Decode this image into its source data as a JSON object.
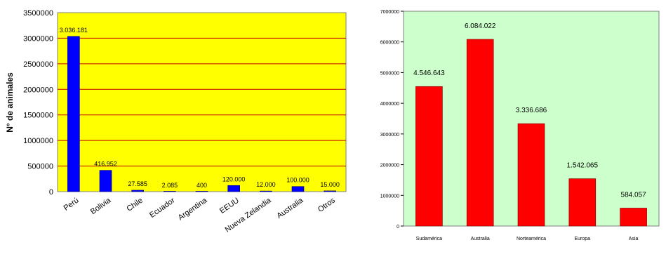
{
  "chart_data": [
    {
      "type": "bar",
      "title": "",
      "xlabel": "",
      "ylabel": "N° de animales",
      "ylim": [
        0,
        3500000
      ],
      "yticks": [
        "0",
        "500000",
        "1000000",
        "1500000",
        "2000000",
        "2500000",
        "3000000",
        "3500000"
      ],
      "categories": [
        "Perú",
        "Bolivia",
        "Chile",
        "Ecuador",
        "Argentina",
        "EEUU",
        "Nueva Zelandia",
        "Australia",
        "Otros"
      ],
      "values": [
        3036181,
        416952,
        27585,
        2085,
        400,
        120000,
        12000,
        100000,
        15000
      ],
      "data_labels": [
        "3.036.181",
        "416.952",
        "27.585",
        "2.085",
        "400",
        "120.000",
        "12.000",
        "100.000",
        "15.000"
      ],
      "colors": {
        "plot_bg": "#ffff00",
        "bar": "#0000ff",
        "grid": "#c00000"
      },
      "grid": true
    },
    {
      "type": "bar",
      "title": "",
      "xlabel": "",
      "ylabel": "",
      "ylim": [
        0,
        7000000
      ],
      "yticks": [
        "0",
        "1000000",
        "2000000",
        "3000000",
        "4000000",
        "5000000",
        "6000000",
        "7000000"
      ],
      "categories": [
        "Sudamérica",
        "Australia",
        "Norteamérica",
        "Europa",
        "Asia"
      ],
      "values": [
        4546643,
        6084022,
        3336686,
        1542065,
        584057
      ],
      "data_labels": [
        "4.546.643",
        "6.084.022",
        "3.336.686",
        "1.542.065",
        "584.057"
      ],
      "colors": {
        "plot_bg": "#ccffcc",
        "bar": "#ff0000"
      },
      "grid": false
    }
  ]
}
